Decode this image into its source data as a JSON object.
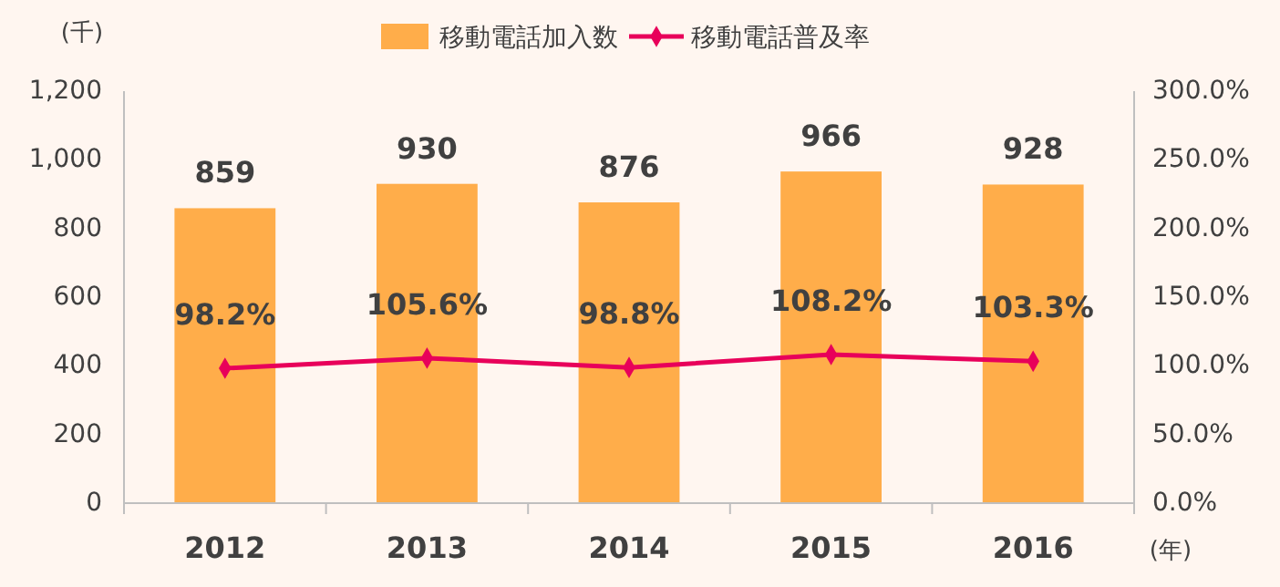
{
  "chart_data": {
    "type": "bar",
    "ylabel": "(千)",
    "xlabel": "(年)",
    "categories": [
      "2012",
      "2013",
      "2014",
      "2015",
      "2016"
    ],
    "series": [
      {
        "name": "移動電話加入数",
        "color": "#ffad4a",
        "values": [
          859,
          930,
          876,
          966,
          928
        ],
        "data_labels": true
      },
      {
        "name": "移動電話普及率",
        "type": "line",
        "axis": "y2",
        "color": "#e8005a",
        "values": [
          98.2,
          105.6,
          98.8,
          108.2,
          103.3
        ],
        "value_labels": [
          "98.2%",
          "105.6%",
          "98.8%",
          "108.2%",
          "103.3%"
        ],
        "marker": "diamond"
      }
    ],
    "ylim": [
      0,
      1200
    ],
    "yticks": [
      0,
      200,
      400,
      600,
      800,
      {
        "value": 1000,
        "label": "1,000"
      },
      {
        "value": 1200,
        "label": "1,200"
      }
    ],
    "y2lim": [
      0,
      300
    ],
    "y2ticks": [
      {
        "value": 0,
        "label": "0.0%"
      },
      {
        "value": 50,
        "label": "50.0%"
      },
      {
        "value": 100,
        "label": "100.0%"
      },
      {
        "value": 150,
        "label": "150.0%"
      },
      {
        "value": 200,
        "label": "200.0%"
      },
      {
        "value": 250,
        "label": "250.0%"
      },
      {
        "value": 300,
        "label": "300.0%"
      }
    ],
    "grid": false,
    "legend": "top"
  }
}
